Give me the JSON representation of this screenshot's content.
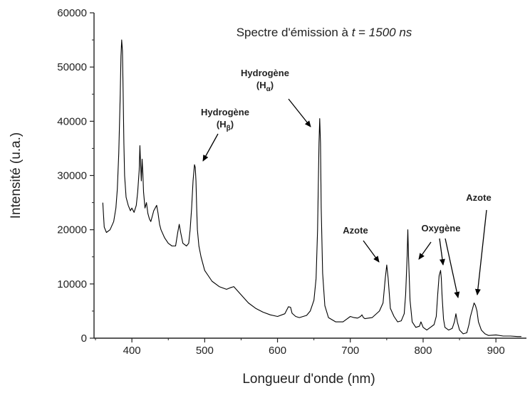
{
  "chart_data": {
    "type": "line",
    "title_prefix": "Spectre d'émission à ",
    "title_var": "t",
    "title_mid": " = ",
    "title_val": "1500 ns",
    "xlabel": "Longueur d'onde (nm)",
    "ylabel": "Intensité (u.a.)",
    "xlim": [
      348,
      938
    ],
    "ylim": [
      0,
      60000
    ],
    "x_ticks": [
      400,
      500,
      600,
      700,
      800,
      900
    ],
    "y_ticks": [
      0,
      10000,
      20000,
      30000,
      40000,
      50000,
      60000
    ],
    "grid": false,
    "series": [
      {
        "line_color": "#000000",
        "x": [
          360,
          362,
          365,
          370,
          375,
          378,
          380,
          382,
          384,
          385,
          386,
          387,
          388,
          389,
          390,
          392,
          395,
          398,
          400,
          403,
          406,
          408,
          410,
          411,
          412,
          413,
          414,
          415,
          416,
          418,
          420,
          422,
          424,
          426,
          428,
          430,
          432,
          434,
          436,
          438,
          440,
          445,
          450,
          455,
          460,
          463,
          465,
          467,
          470,
          475,
          478,
          480,
          482,
          484,
          486,
          487,
          488,
          489,
          490,
          492,
          495,
          500,
          510,
          520,
          530,
          535,
          540,
          550,
          560,
          570,
          580,
          590,
          600,
          610,
          615,
          618,
          620,
          625,
          630,
          640,
          645,
          650,
          653,
          655,
          657,
          658,
          659,
          660,
          662,
          665,
          670,
          680,
          690,
          695,
          700,
          705,
          710,
          714,
          716,
          718,
          720,
          730,
          740,
          745,
          748,
          750,
          752,
          755,
          760,
          765,
          770,
          774,
          776,
          778,
          779,
          780,
          782,
          785,
          790,
          795,
          797,
          800,
          805,
          810,
          815,
          818,
          820,
          822,
          824,
          825,
          826,
          828,
          830,
          835,
          840,
          843,
          845,
          847,
          850,
          855,
          860,
          863,
          865,
          868,
          870,
          872,
          874,
          876,
          880,
          885,
          890,
          900,
          910,
          920,
          930,
          935
        ],
        "y": [
          25000,
          20500,
          19500,
          20000,
          21500,
          24000,
          27500,
          34000,
          45000,
          52000,
          55000,
          53000,
          45000,
          36000,
          30000,
          26000,
          24500,
          23500,
          24000,
          23200,
          24500,
          27000,
          31000,
          35500,
          32000,
          29000,
          33000,
          30500,
          27000,
          24000,
          25000,
          23000,
          22000,
          21500,
          22500,
          23500,
          24000,
          24500,
          23000,
          21000,
          20000,
          18500,
          17500,
          17000,
          17000,
          19500,
          21000,
          19500,
          17500,
          17000,
          17500,
          20000,
          24000,
          29000,
          32000,
          31500,
          29000,
          24000,
          20000,
          17000,
          15000,
          12500,
          10500,
          9500,
          9000,
          9300,
          9500,
          8000,
          6500,
          5500,
          4800,
          4300,
          4000,
          4500,
          5800,
          5700,
          4600,
          4000,
          3800,
          4200,
          5000,
          7000,
          11000,
          20000,
          36000,
          40500,
          36000,
          24000,
          12000,
          6000,
          3800,
          3000,
          3000,
          3500,
          4000,
          3800,
          3700,
          4000,
          4300,
          3800,
          3600,
          3800,
          5000,
          6500,
          11000,
          13500,
          11000,
          5500,
          4000,
          3000,
          3200,
          4500,
          8000,
          15000,
          20000,
          15000,
          7000,
          3000,
          2000,
          2200,
          3000,
          2000,
          1500,
          2000,
          2500,
          4000,
          8000,
          11500,
          12500,
          11000,
          8000,
          3500,
          2000,
          1500,
          1800,
          3000,
          4500,
          3000,
          1500,
          800,
          1000,
          2500,
          4000,
          5500,
          6500,
          6000,
          5000,
          3000,
          1500,
          800,
          500,
          600,
          400,
          400,
          300,
          300
        ]
      }
    ],
    "annotations": [
      {
        "lines": [
          "Hydrogène",
          "(Hβ)"
        ],
        "sub": "β",
        "color": "#000000"
      },
      {
        "lines": [
          "Hydrogène",
          "(Hα)"
        ],
        "sub": "α",
        "color": "#000000"
      },
      {
        "lines": [
          "Azote"
        ],
        "color": "#000000"
      },
      {
        "lines": [
          "Oxygène"
        ],
        "color": "#000000"
      },
      {
        "lines": [
          "Azote"
        ],
        "color": "#000000"
      }
    ]
  }
}
